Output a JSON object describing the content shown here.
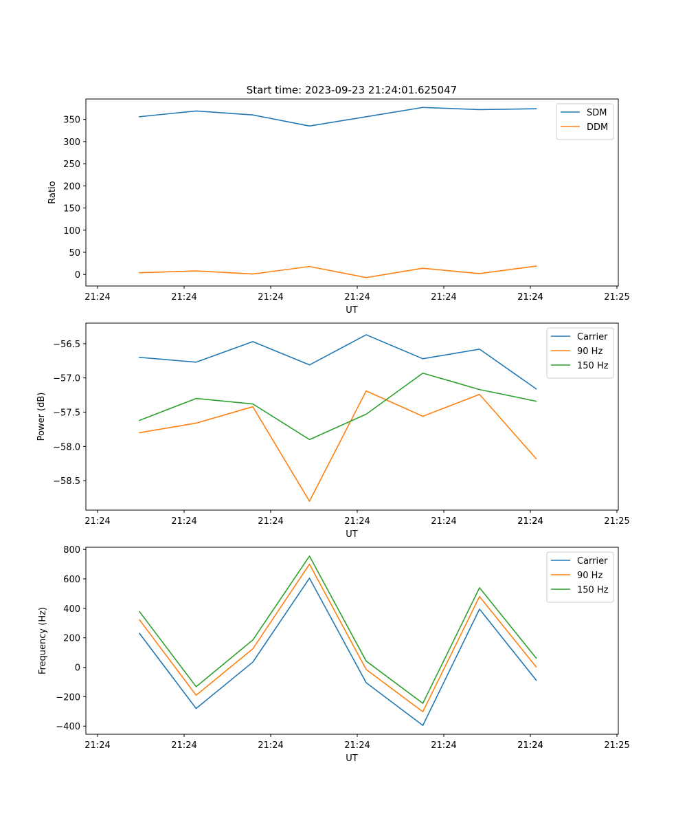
{
  "figure_title": "Start time: 2023-09-23 21:24:01.625047",
  "colors": {
    "blue": "#1f77b4",
    "orange": "#ff7f0e",
    "green": "#2ca02c"
  },
  "chart_data": [
    {
      "type": "line",
      "title": "Start time: 2023-09-23 21:24:01.625047",
      "xlabel": "UT",
      "ylabel": "Ratio",
      "x_tick_labels": [
        "21:24",
        "21:24",
        "21:24",
        "21:24",
        "21:24",
        "21:24",
        "21:24",
        "21:25"
      ],
      "y_ticks": [
        0,
        50,
        100,
        150,
        200,
        250,
        300,
        350
      ],
      "y_tick_labels": [
        "0",
        "50",
        "100",
        "150",
        "200",
        "250",
        "300",
        "350"
      ],
      "ylim": [
        -26,
        396
      ],
      "legend_position": "top-right",
      "series": [
        {
          "name": "SDM",
          "color": "#1f77b4",
          "values": [
            356,
            369,
            360,
            335,
            356,
            377,
            372,
            374
          ]
        },
        {
          "name": "DDM",
          "color": "#ff7f0e",
          "values": [
            4,
            8,
            1,
            18,
            -7,
            14,
            2,
            19
          ]
        }
      ]
    },
    {
      "type": "line",
      "xlabel": "UT",
      "ylabel": "Power (dB)",
      "x_tick_labels": [
        "21:24",
        "21:24",
        "21:24",
        "21:24",
        "21:24",
        "21:24",
        "21:24",
        "21:25"
      ],
      "y_ticks": [
        -56.5,
        -57.0,
        -57.5,
        -58.0,
        -58.5
      ],
      "y_tick_labels": [
        "−56.5",
        "−57.0",
        "−57.5",
        "−58.0",
        "−58.5"
      ],
      "ylim": [
        -58.93,
        -56.2
      ],
      "legend_position": "top-right",
      "series": [
        {
          "name": "Carrier",
          "color": "#1f77b4",
          "values": [
            -56.7,
            -56.77,
            -56.47,
            -56.81,
            -56.37,
            -56.72,
            -56.58,
            -57.16
          ]
        },
        {
          "name": "90 Hz",
          "color": "#ff7f0e",
          "values": [
            -57.8,
            -57.66,
            -57.42,
            -58.8,
            -57.19,
            -57.56,
            -57.24,
            -58.18
          ]
        },
        {
          "name": "150 Hz",
          "color": "#2ca02c",
          "values": [
            -57.62,
            -57.3,
            -57.38,
            -57.9,
            -57.53,
            -56.93,
            -57.17,
            -57.34
          ]
        }
      ]
    },
    {
      "type": "line",
      "xlabel": "UT",
      "ylabel": "Frequency (Hz)",
      "x_tick_labels": [
        "21:24",
        "21:24",
        "21:24",
        "21:24",
        "21:24",
        "21:24",
        "21:24",
        "21:25"
      ],
      "y_ticks": [
        800,
        600,
        400,
        200,
        0,
        -200,
        -400
      ],
      "y_tick_labels": [
        "800",
        "600",
        "400",
        "200",
        "0",
        "−200",
        "−400"
      ],
      "ylim": [
        -455,
        815
      ],
      "legend_position": "top-right",
      "series": [
        {
          "name": "Carrier",
          "color": "#1f77b4",
          "values": [
            230,
            -280,
            35,
            605,
            -105,
            -395,
            395,
            -88
          ]
        },
        {
          "name": "90 Hz",
          "color": "#ff7f0e",
          "values": [
            322,
            -190,
            125,
            700,
            -15,
            -302,
            480,
            2
          ]
        },
        {
          "name": "150 Hz",
          "color": "#2ca02c",
          "values": [
            378,
            -132,
            185,
            755,
            42,
            -245,
            540,
            62
          ]
        }
      ]
    }
  ]
}
